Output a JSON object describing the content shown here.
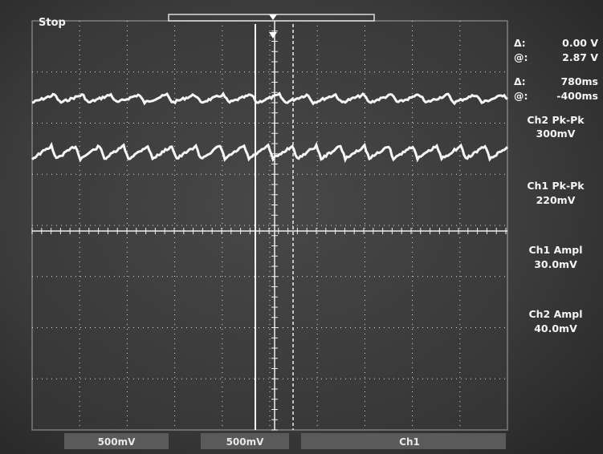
{
  "status": "Stop",
  "cursors": [
    {
      "delta_label": "Δ:",
      "delta": "0.00 V",
      "at_label": "@:",
      "at": "2.87 V"
    },
    {
      "delta_label": "Δ:",
      "delta": "780ms",
      "at_label": "@:",
      "at": "-400ms"
    }
  ],
  "measurements": [
    {
      "name": "Ch2 Pk-Pk",
      "value": "300mV"
    },
    {
      "name": "Ch1 Pk-Pk",
      "value": "220mV"
    },
    {
      "name": "Ch1 Ampl",
      "value": "30.0mV"
    },
    {
      "name": "Ch2 Ampl",
      "value": "40.0mV"
    }
  ],
  "footer": {
    "ch1_scale": "500mV",
    "ch2_scale": "500mV",
    "trigger_source": "Ch1"
  }
}
